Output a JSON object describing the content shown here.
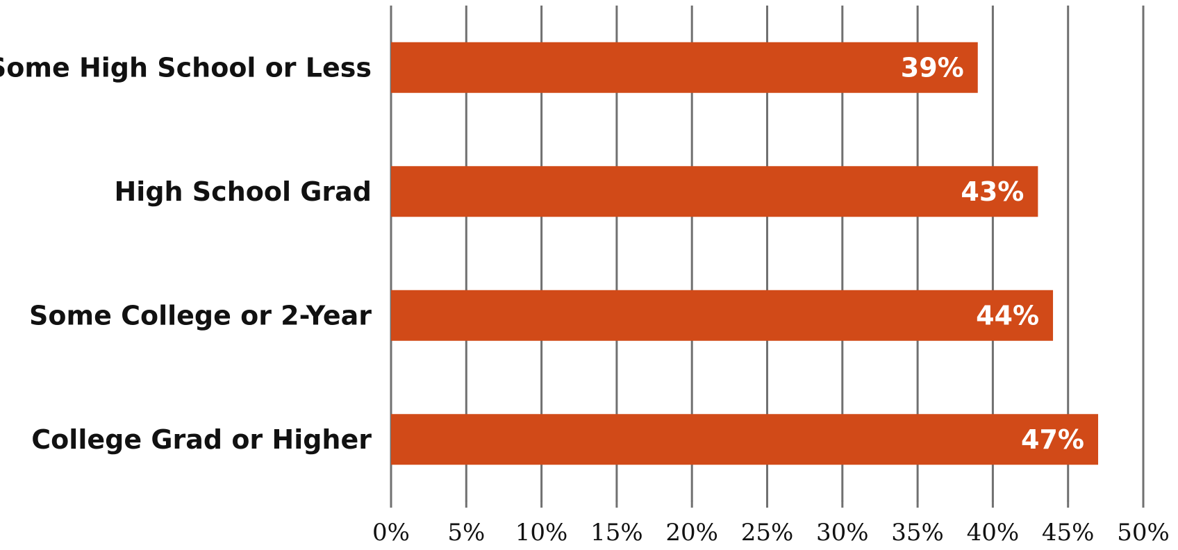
{
  "chart_data": {
    "type": "bar",
    "orientation": "horizontal",
    "categories": [
      "Some High School or Less",
      "High School Grad",
      "Some College or 2-Year",
      "College Grad or Higher"
    ],
    "values": [
      39,
      43,
      44,
      47
    ],
    "data_labels": [
      "39%",
      "43%",
      "44%",
      "47%"
    ],
    "x_ticks": [
      "0%",
      "5%",
      "10%",
      "15%",
      "20%",
      "25%",
      "30%",
      "35%",
      "40%",
      "45%",
      "50%"
    ],
    "xlim": [
      0,
      50
    ],
    "unit": "%",
    "grid": "vertical",
    "legend": "none",
    "title": "",
    "xlabel": "",
    "ylabel": "",
    "colors": {
      "bar": "#D14A18",
      "grid": "#707070",
      "label": "#111111",
      "data_label": "#ffffff"
    }
  }
}
